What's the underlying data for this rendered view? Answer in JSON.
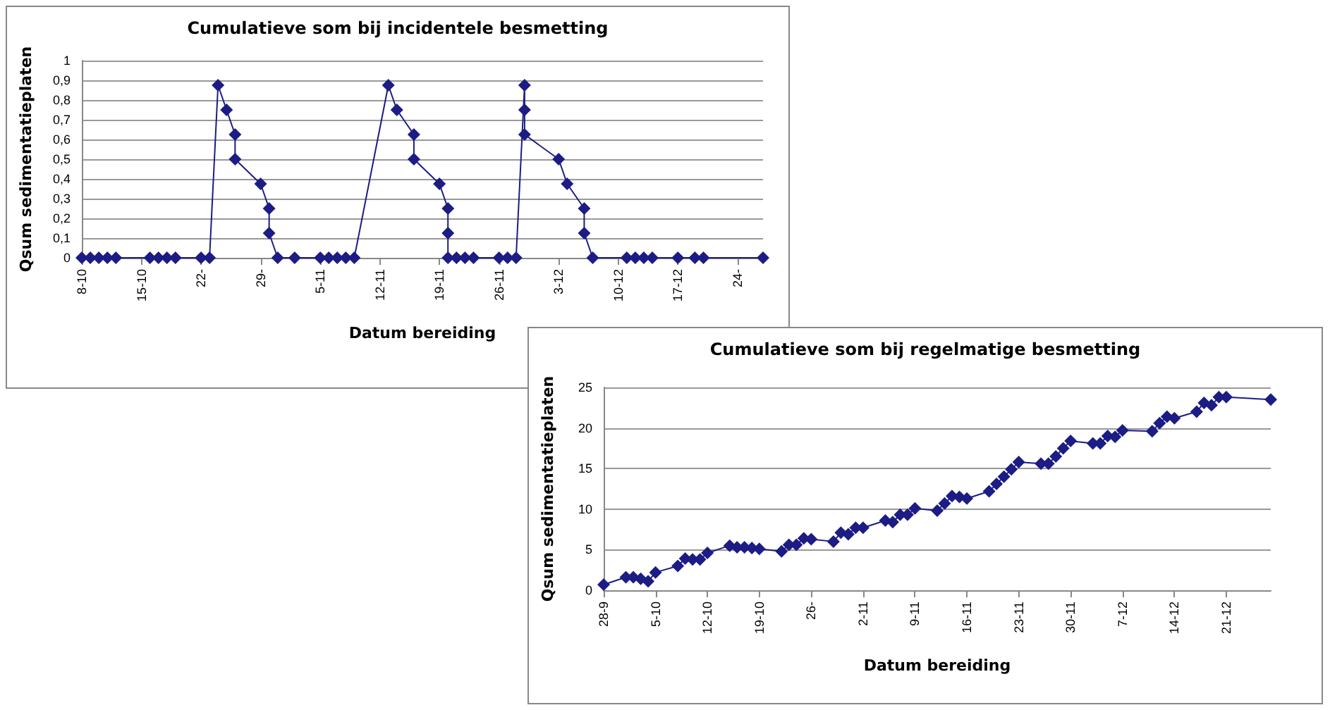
{
  "chart_data": [
    {
      "type": "line",
      "title": "Cumulatieve som bij incidentele besmetting",
      "xlabel": "Datum bereiding",
      "ylabel": "Qsum sedimentatieplaten",
      "marker": "diamond",
      "grid": "y",
      "xlim": [
        "--10-08",
        "--12-27"
      ],
      "xticks": [
        {
          "value": "--10-08",
          "label": "8-10"
        },
        {
          "value": "--10-15",
          "label": "15-10"
        },
        {
          "value": "--10-22",
          "label": "22-"
        },
        {
          "value": "--10-29",
          "label": "29-"
        },
        {
          "value": "--11-05",
          "label": "5-11"
        },
        {
          "value": "--11-12",
          "label": "12-11"
        },
        {
          "value": "--11-19",
          "label": "19-11"
        },
        {
          "value": "--11-26",
          "label": "26-11"
        },
        {
          "value": "--12-03",
          "label": "3-12"
        },
        {
          "value": "--12-10",
          "label": "10-12"
        },
        {
          "value": "--12-17",
          "label": "17-12"
        },
        {
          "value": "--12-24",
          "label": "24-"
        }
      ],
      "ylim": [
        0,
        1
      ],
      "yticks": [
        0,
        {
          "value": 0.1,
          "label": "0,1"
        },
        {
          "value": 0.2,
          "label": "0,2"
        },
        {
          "value": 0.3,
          "label": "0,3"
        },
        {
          "value": 0.4,
          "label": "0,4"
        },
        {
          "value": 0.5,
          "label": "0,5"
        },
        {
          "value": 0.6,
          "label": "0,6"
        },
        {
          "value": 0.7,
          "label": "0,7"
        },
        {
          "value": 0.8,
          "label": "0,8"
        },
        {
          "value": 0.9,
          "label": "0,9"
        },
        1
      ],
      "series": [
        {
          "color": "#1c1c84",
          "x": [
            "--10-08",
            "--10-09",
            "--10-10",
            "--10-11",
            "--10-12",
            "--10-16",
            "--10-17",
            "--10-18",
            "--10-19",
            "--10-22",
            "--10-23",
            "--10-24",
            "--10-25",
            "--10-26",
            "--10-26",
            "--10-29",
            "--10-30",
            "--10-30",
            "--10-31",
            "--11-02",
            "--11-05",
            "--11-06",
            "--11-07",
            "--11-08",
            "--11-09",
            "--11-13",
            "--11-14",
            "--11-16",
            "--11-16",
            "--11-19",
            "--11-20",
            "--11-20",
            "--11-20",
            "--11-21",
            "--11-22",
            "--11-23",
            "--11-26",
            "--11-27",
            "--11-28",
            "--11-29",
            "--11-29",
            "--11-29",
            "--12-03",
            "--12-04",
            "--12-06",
            "--12-06",
            "--12-07",
            "--12-11",
            "--12-12",
            "--12-13",
            "--12-14",
            "--12-17",
            "--12-19",
            "--12-20",
            "--12-27"
          ],
          "values": [
            0,
            0,
            0,
            0,
            0,
            0,
            0,
            0,
            0,
            0,
            0,
            0.875,
            0.75,
            0.625,
            0.5,
            0.375,
            0.25,
            0.125,
            0,
            0,
            0,
            0,
            0,
            0,
            0,
            0.875,
            0.75,
            0.625,
            0.5,
            0.375,
            0.25,
            0.125,
            0,
            0,
            0,
            0,
            0,
            0,
            0,
            0.875,
            0.75,
            0.625,
            0.5,
            0.375,
            0.25,
            0.125,
            0,
            0,
            0,
            0,
            0,
            0,
            0,
            0,
            0
          ]
        }
      ]
    },
    {
      "type": "line",
      "title": "Cumulatieve som bij regelmatige besmetting",
      "xlabel": "Datum bereiding",
      "ylabel": "Qsum sedimentatieplaten",
      "marker": "diamond",
      "grid": "y",
      "xlim": [
        "--09-28",
        "--12-27"
      ],
      "xticks": [
        {
          "value": "--09-28",
          "label": "28-9"
        },
        {
          "value": "--10-05",
          "label": "5-10"
        },
        {
          "value": "--10-12",
          "label": "12-10"
        },
        {
          "value": "--10-19",
          "label": "19-10"
        },
        {
          "value": "--10-26",
          "label": "26-"
        },
        {
          "value": "--11-02",
          "label": "2-11"
        },
        {
          "value": "--11-09",
          "label": "9-11"
        },
        {
          "value": "--11-16",
          "label": "16-11"
        },
        {
          "value": "--11-23",
          "label": "23-11"
        },
        {
          "value": "--11-30",
          "label": "30-11"
        },
        {
          "value": "--12-07",
          "label": "7-12"
        },
        {
          "value": "--12-14",
          "label": "14-12"
        },
        {
          "value": "--12-21",
          "label": "21-12"
        }
      ],
      "ylim": [
        0,
        25
      ],
      "yticks": [
        0,
        5,
        10,
        15,
        20,
        25
      ],
      "series": [
        {
          "color": "#1c1c84",
          "x": [
            "--09-28",
            "--10-01",
            "--10-02",
            "--10-03",
            "--10-04",
            "--10-05",
            "--10-08",
            "--10-09",
            "--10-10",
            "--10-11",
            "--10-12",
            "--10-15",
            "--10-16",
            "--10-17",
            "--10-18",
            "--10-19",
            "--10-22",
            "--10-23",
            "--10-24",
            "--10-25",
            "--10-26",
            "--10-29",
            "--10-30",
            "--10-31",
            "--11-01",
            "--11-02",
            "--11-05",
            "--11-06",
            "--11-07",
            "--11-08",
            "--11-09",
            "--11-12",
            "--11-13",
            "--11-14",
            "--11-15",
            "--11-16",
            "--11-19",
            "--11-20",
            "--11-21",
            "--11-22",
            "--11-23",
            "--11-26",
            "--11-27",
            "--11-28",
            "--11-29",
            "--11-30",
            "--12-03",
            "--12-04",
            "--12-05",
            "--12-06",
            "--12-07",
            "--12-11",
            "--12-12",
            "--12-13",
            "--12-14",
            "--12-17",
            "--12-18",
            "--12-19",
            "--12-20",
            "--12-21",
            "--12-27"
          ],
          "values": [
            0.7,
            1.6,
            1.6,
            1.4,
            1.1,
            2.2,
            3.0,
            3.9,
            3.8,
            3.8,
            4.6,
            5.5,
            5.3,
            5.3,
            5.2,
            5.1,
            4.8,
            5.6,
            5.6,
            6.4,
            6.3,
            6.0,
            7.1,
            6.9,
            7.7,
            7.7,
            8.6,
            8.4,
            9.3,
            9.3,
            10.1,
            9.8,
            10.7,
            11.6,
            11.5,
            11.3,
            12.2,
            13.1,
            14.0,
            14.9,
            15.8,
            15.6,
            15.6,
            16.5,
            17.5,
            18.4,
            18.1,
            18.1,
            19.0,
            18.9,
            19.7,
            19.6,
            20.6,
            21.4,
            21.2,
            22.0,
            23.1,
            22.8,
            23.8,
            23.8,
            23.5
          ]
        }
      ]
    }
  ]
}
